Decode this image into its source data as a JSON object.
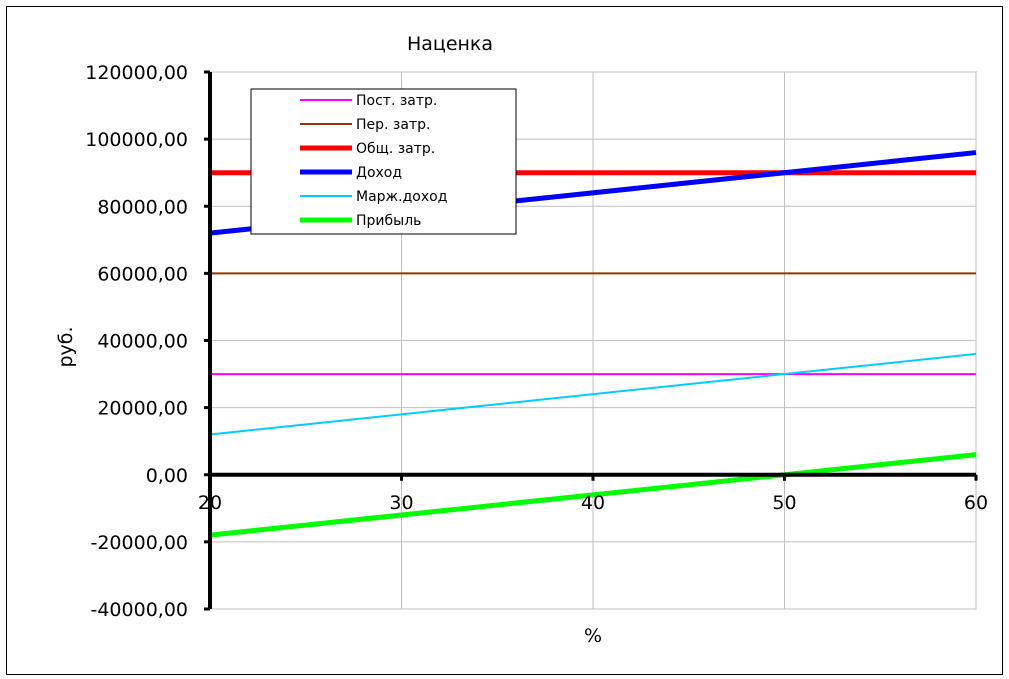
{
  "chart_data": {
    "type": "line",
    "title": "Наценка",
    "xlabel": "%",
    "ylabel": "руб.",
    "xlim": [
      20,
      60
    ],
    "ylim": [
      -40000,
      120000
    ],
    "x_ticks": [
      "20",
      "30",
      "40",
      "50",
      "60"
    ],
    "x_tick_values": [
      20,
      30,
      40,
      50,
      60
    ],
    "y_ticks": [
      "-40000,00",
      "-20000,00",
      "0,00",
      "20000,00",
      "40000,00",
      "60000,00",
      "80000,00",
      "100000,00",
      "120000,00"
    ],
    "y_tick_values": [
      -40000,
      -20000,
      0,
      20000,
      40000,
      60000,
      80000,
      100000,
      120000
    ],
    "grid": true,
    "legend_position": "top-left",
    "x": [
      20,
      60
    ],
    "series": [
      {
        "name": "Пост. затр.",
        "values": [
          30000,
          30000
        ],
        "color": "#ff00ff",
        "width": 2
      },
      {
        "name": "Пер. затр.",
        "values": [
          60000,
          60000
        ],
        "color": "#993300",
        "width": 2
      },
      {
        "name": "Общ. затр.",
        "values": [
          90000,
          90000
        ],
        "color": "#ff0000",
        "width": 5
      },
      {
        "name": "Доход",
        "values": [
          72000,
          96000
        ],
        "color": "#0000ff",
        "width": 5
      },
      {
        "name": "Марж.доход",
        "values": [
          12000,
          36000
        ],
        "color": "#00ccff",
        "width": 2
      },
      {
        "name": "Прибыль",
        "values": [
          -18000,
          6000
        ],
        "color": "#00ff00",
        "width": 5
      }
    ]
  }
}
